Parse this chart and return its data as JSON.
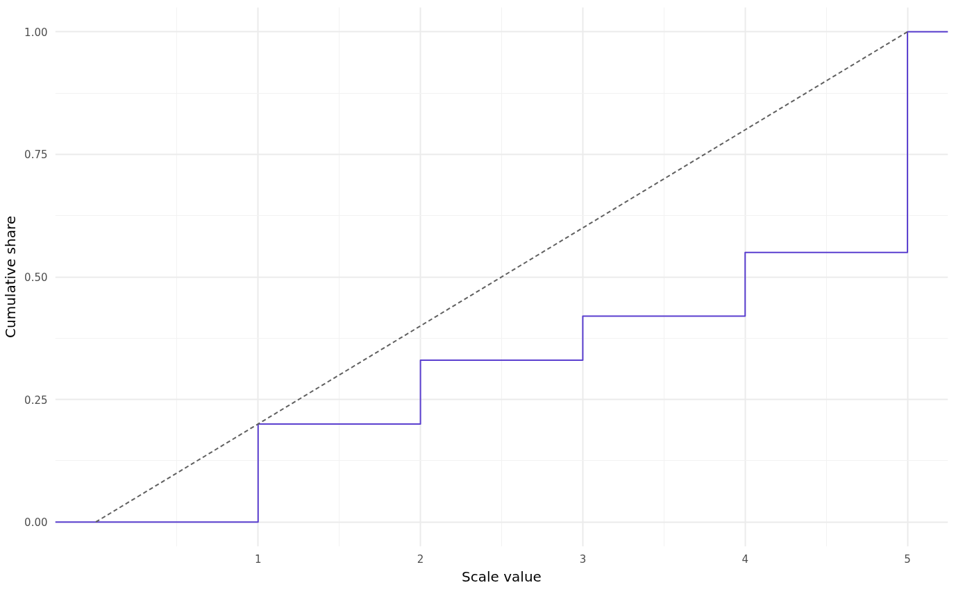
{
  "chart_data": {
    "type": "step",
    "xlabel": "Scale value",
    "ylabel": "Cumulative share",
    "xlim": [
      -0.25,
      5.25
    ],
    "ylim": [
      -0.05,
      1.05
    ],
    "xticks": [
      1,
      2,
      3,
      4,
      5
    ],
    "yticks": [
      {
        "value": 0,
        "label": "0.00"
      },
      {
        "value": 0.25,
        "label": "0.25"
      },
      {
        "value": 0.5,
        "label": "0.50"
      },
      {
        "value": 0.75,
        "label": "0.75"
      },
      {
        "value": 1,
        "label": "1.00"
      }
    ],
    "grid": true,
    "series": [
      {
        "color": "#5a3fcf",
        "line_style": "solid",
        "x": [
          -0.25,
          1,
          2,
          3,
          4,
          5,
          5.25
        ],
        "values": [
          0,
          0.2,
          0.33,
          0.42,
          0.55,
          1,
          1
        ]
      },
      {
        "type": "line",
        "color": "#606060",
        "line_style": "dashed",
        "x": [
          0,
          5
        ],
        "values": [
          0,
          1
        ]
      }
    ]
  }
}
